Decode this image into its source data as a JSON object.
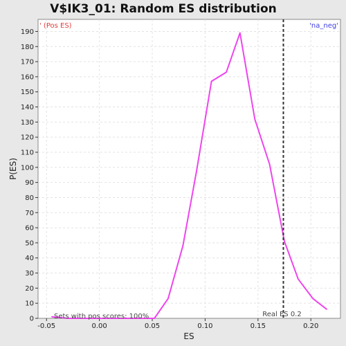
{
  "chart_data": {
    "type": "line",
    "title": "V$IK3_01: Random ES distribution",
    "xlabel": "ES",
    "ylabel": "P(ES)",
    "xlim": [
      -0.058,
      0.228
    ],
    "ylim": [
      0,
      198
    ],
    "x_ticks": [
      -0.05,
      0.0,
      0.05,
      0.1,
      0.15,
      0.2
    ],
    "x_tick_labels": [
      "-0.05",
      "0.00",
      "0.05",
      "0.10",
      "0.15",
      "0.20"
    ],
    "y_ticks": [
      0,
      10,
      20,
      30,
      40,
      50,
      60,
      70,
      80,
      90,
      100,
      110,
      120,
      130,
      140,
      150,
      160,
      170,
      180,
      190
    ],
    "grid": true,
    "series": [
      {
        "color": "#ee44ee",
        "x": [
          -0.045,
          -0.03,
          -0.01,
          0.01,
          0.03,
          0.052,
          0.065,
          0.079,
          0.092,
          0.106,
          0.12,
          0.133,
          0.147,
          0.161,
          0.175,
          0.188,
          0.202,
          0.215
        ],
        "y": [
          1,
          0,
          0,
          0,
          0,
          0,
          13,
          48,
          98,
          157,
          163,
          189,
          132,
          102,
          51,
          26,
          13,
          6
        ]
      }
    ],
    "vline": {
      "x": 0.174,
      "label": "Real ES 0.2",
      "color": "#333333"
    },
    "corner_left": "' (Pos ES)",
    "corner_right": "'na_neg'",
    "annotation": "Sets with pos scores: 100%"
  }
}
